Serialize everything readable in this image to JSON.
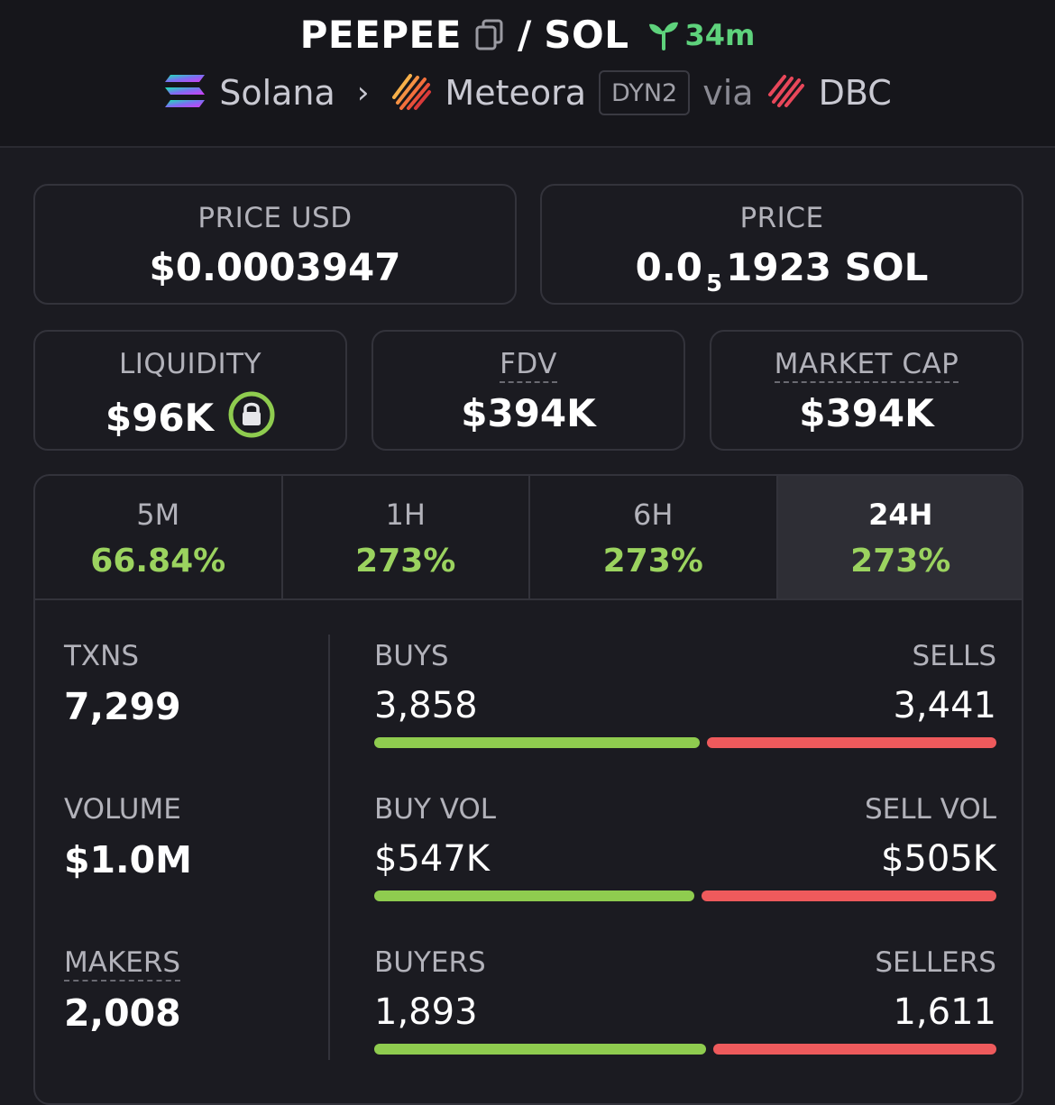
{
  "header": {
    "base": "PEEPEE",
    "sep": "/",
    "quote": "SOL",
    "age": "34m",
    "chain": "Solana",
    "dex": "Meteora",
    "dex_badge": "DYN2",
    "via": "via",
    "launchpad": "DBC"
  },
  "price_usd": {
    "label": "PRICE USD",
    "value": "$0.0003947"
  },
  "price": {
    "label": "PRICE",
    "prefix": "0.0",
    "zeros": "5",
    "suffix": "1923 SOL"
  },
  "liquidity": {
    "label": "LIQUIDITY",
    "value": "$96K"
  },
  "fdv": {
    "label": "FDV",
    "value": "$394K"
  },
  "market_cap": {
    "label": "MARKET CAP",
    "value": "$394K"
  },
  "tabs": [
    {
      "label": "5M",
      "value": "66.84%"
    },
    {
      "label": "1H",
      "value": "273%"
    },
    {
      "label": "6H",
      "value": "273%"
    },
    {
      "label": "24H",
      "value": "273%",
      "active": true
    }
  ],
  "stats": {
    "txns": {
      "label": "TXNS",
      "value": "7,299"
    },
    "volume": {
      "label": "VOLUME",
      "value": "$1.0M"
    },
    "makers": {
      "label": "MAKERS",
      "value": "2,008"
    },
    "buys": {
      "label": "BUYS",
      "value": "3,858",
      "buy_fraction": 0.529
    },
    "sells": {
      "label": "SELLS",
      "value": "3,441"
    },
    "buy_vol": {
      "label": "BUY VOL",
      "value": "$547K",
      "buy_fraction": 0.52
    },
    "sell_vol": {
      "label": "SELL VOL",
      "value": "$505K"
    },
    "buyers": {
      "label": "BUYERS",
      "value": "1,893",
      "buy_fraction": 0.54
    },
    "sellers": {
      "label": "SELLERS",
      "value": "1,611"
    }
  },
  "colors": {
    "positive": "#9bd35f",
    "buy_bar": "#8fcc4f",
    "sell_bar": "#ee5a5c",
    "age": "#5ed27c"
  },
  "icons": {
    "copy": "copy-icon",
    "age": "sprout-icon",
    "chain": "solana-logo-icon",
    "dex": "meteora-logo-icon",
    "launchpad": "dbc-logo-icon",
    "lock": "lock-icon"
  }
}
